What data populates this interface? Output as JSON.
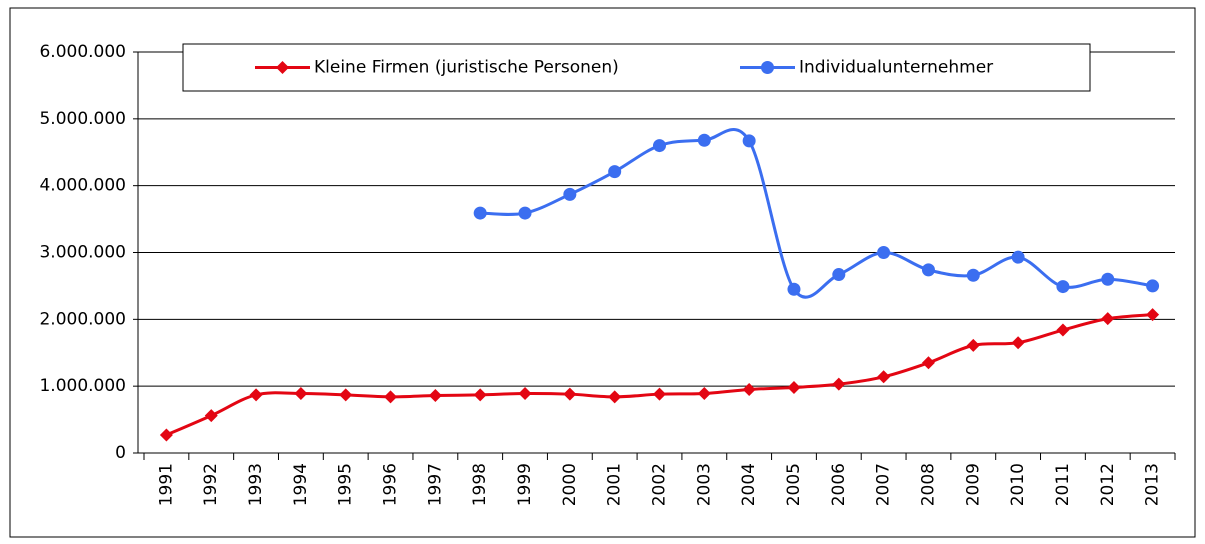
{
  "chart_data": {
    "type": "line",
    "categories": [
      "1991",
      "1992",
      "1993",
      "1994",
      "1995",
      "1996",
      "1997",
      "1998",
      "1999",
      "2000",
      "2001",
      "2002",
      "2003",
      "2004",
      "2005",
      "2006",
      "2007",
      "2008",
      "2009",
      "2010",
      "2011",
      "2012",
      "2013"
    ],
    "series": [
      {
        "name": "Kleine Firmen (juristische Personen)",
        "color": "#e30613",
        "marker": "diamond",
        "values": [
          270000,
          560000,
          870000,
          890000,
          870000,
          840000,
          860000,
          870000,
          890000,
          880000,
          840000,
          880000,
          890000,
          950000,
          980000,
          1030000,
          1140000,
          1350000,
          1610000,
          1650000,
          1840000,
          2010000,
          2070000
        ]
      },
      {
        "name": "Individualunternehmer",
        "color": "#3b6ef0",
        "marker": "circle",
        "values": [
          null,
          null,
          null,
          null,
          null,
          null,
          null,
          3590000,
          3590000,
          3870000,
          4210000,
          4600000,
          4680000,
          4670000,
          2450000,
          2670000,
          3000000,
          2740000,
          2660000,
          2930000,
          2490000,
          2600000,
          2500000
        ]
      }
    ],
    "ylim": [
      0,
      6000000
    ],
    "yticks": [
      0,
      {
        "value": 1000000,
        "label": "1.000.000"
      },
      {
        "value": 2000000,
        "label": "2.000.000"
      },
      {
        "value": 3000000,
        "label": "3.000.000"
      },
      {
        "value": 4000000,
        "label": "4.000.000"
      },
      {
        "value": 5000000,
        "label": "5.000.000"
      },
      {
        "value": 6000000,
        "label": "6.000.000"
      }
    ],
    "grid": true,
    "smooth": true,
    "legend": "top"
  }
}
